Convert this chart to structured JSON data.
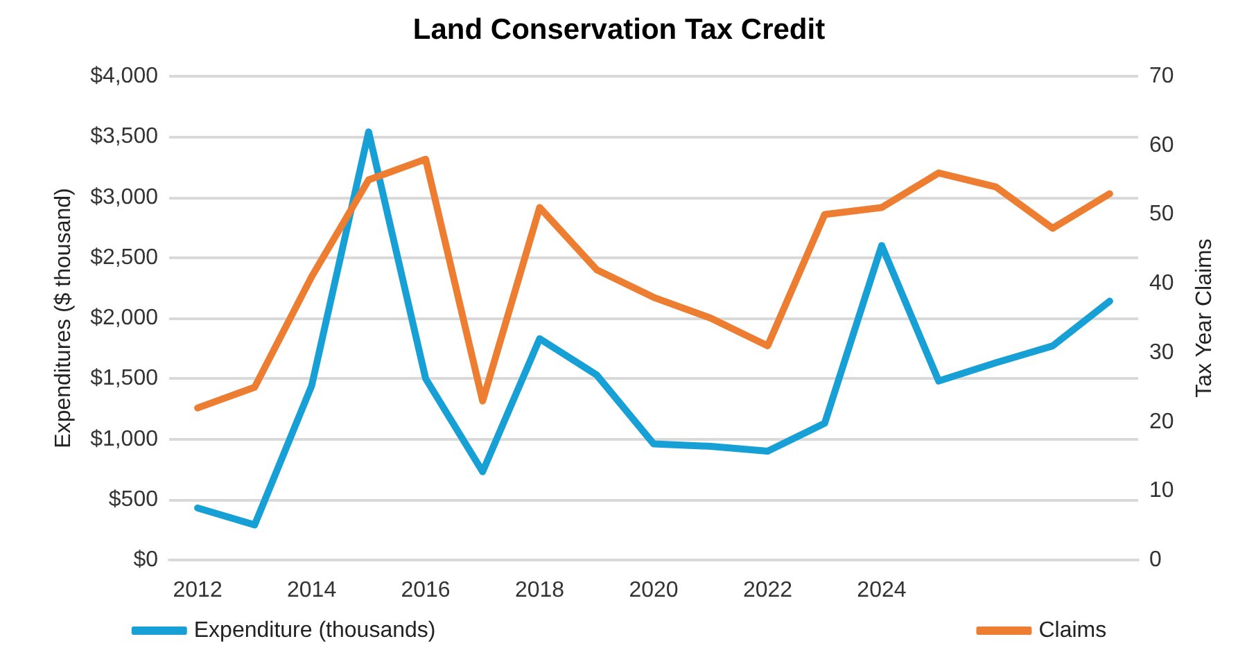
{
  "chart_data": {
    "type": "line",
    "title": "Land Conservation Tax Credit",
    "ylabel": "Expenditures ($ thousand)",
    "y2label": "Tax Year Claims",
    "categories": [
      "2012",
      null,
      "2014",
      null,
      "2016",
      null,
      "2018",
      null,
      "2020",
      null,
      "2022",
      null,
      "2024",
      null,
      null,
      null,
      null
    ],
    "series": [
      {
        "name": "Expenditure (thousands)",
        "color": "#17a0d6",
        "values": [
          430,
          290,
          1440,
          3540,
          1500,
          730,
          1830,
          1530,
          960,
          940,
          900,
          1130,
          2600,
          1480,
          1630,
          1770,
          2140
        ]
      },
      {
        "name": "Claims",
        "color": "#ed7d31",
        "axis": "y2",
        "values": [
          22,
          25,
          41,
          55,
          58,
          23,
          51,
          42,
          38,
          35,
          31,
          50,
          51,
          56,
          54,
          48,
          53
        ]
      }
    ],
    "ylim": [
      0,
      4000
    ],
    "yticks": [
      {
        "value": 0,
        "label": "$0"
      },
      {
        "value": 500,
        "label": "$500"
      },
      {
        "value": 1000,
        "label": "$1,000"
      },
      {
        "value": 1500,
        "label": "$1,500"
      },
      {
        "value": 2000,
        "label": "$2,000"
      },
      {
        "value": 2500,
        "label": "$2,500"
      },
      {
        "value": 3000,
        "label": "$3,000"
      },
      {
        "value": 3500,
        "label": "$3,500"
      },
      {
        "value": 4000,
        "label": "$4,000"
      }
    ],
    "y2lim": [
      0,
      70
    ],
    "y2ticks": [
      0,
      10,
      20,
      30,
      40,
      50,
      60,
      70
    ],
    "grid": "y",
    "legend": "bottom",
    "marker": "none",
    "line_style": "solid"
  }
}
